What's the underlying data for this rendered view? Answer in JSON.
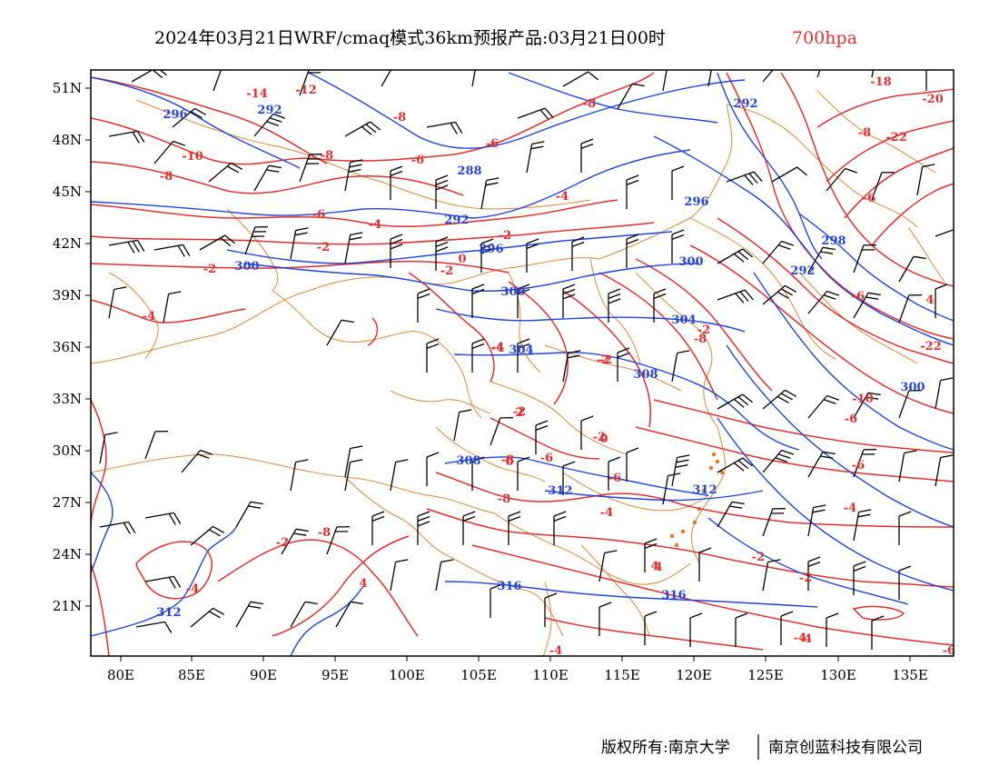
{
  "title": {
    "main": "2024年03月21日WRF/cmaq模式36km预报产品:03月21日00时",
    "level": "700hpa"
  },
  "colors": {
    "title": "#000000",
    "level": "#dd3333",
    "temperature_contour": "#e03030",
    "height_contour": "#2244dd",
    "border": "#d98a3a",
    "wind_barb": "#000000",
    "frame": "#000000"
  },
  "axes": {
    "lon_labels": [
      "80E",
      "85E",
      "90E",
      "95E",
      "100E",
      "105E",
      "110E",
      "115E",
      "120E",
      "125E",
      "130E",
      "135E"
    ],
    "lat_labels": [
      "51N",
      "48N",
      "45N",
      "42N",
      "39N",
      "36N",
      "33N",
      "30N",
      "27N",
      "24N",
      "21N"
    ]
  },
  "map": {
    "temperature_labels": [
      "-14",
      "-12",
      "-8",
      "-10",
      "-8",
      "-8",
      "-6",
      "-6",
      "-4",
      "-4",
      "-2",
      "-2",
      "-2",
      "0",
      "-2",
      "-18",
      "-20",
      "-22",
      "-8",
      "-22",
      "-10",
      "-6",
      "-4",
      "-2",
      "0",
      "-2",
      "-2",
      "-4",
      "-2",
      "-4",
      "-6",
      "-8",
      "-8",
      "-6",
      "-4",
      "-6",
      "4",
      "-8",
      "-2",
      "4",
      "-4",
      "-4",
      "-6",
      "-8",
      "-2",
      "0",
      "2",
      "-2",
      "-4",
      "4",
      "-6",
      "-8",
      "-6",
      "4",
      "-4",
      "-2",
      "-4",
      "-6"
    ],
    "height_labels": [
      "296",
      "292",
      "288",
      "292",
      "296",
      "300",
      "300",
      "292",
      "296",
      "300",
      "304",
      "304",
      "308",
      "308",
      "312",
      "312",
      "316",
      "316",
      "312",
      "298",
      "292",
      "300"
    ]
  },
  "footer": {
    "copyright": "版权所有:南京大学",
    "company": "南京创蓝科技有限公司"
  }
}
